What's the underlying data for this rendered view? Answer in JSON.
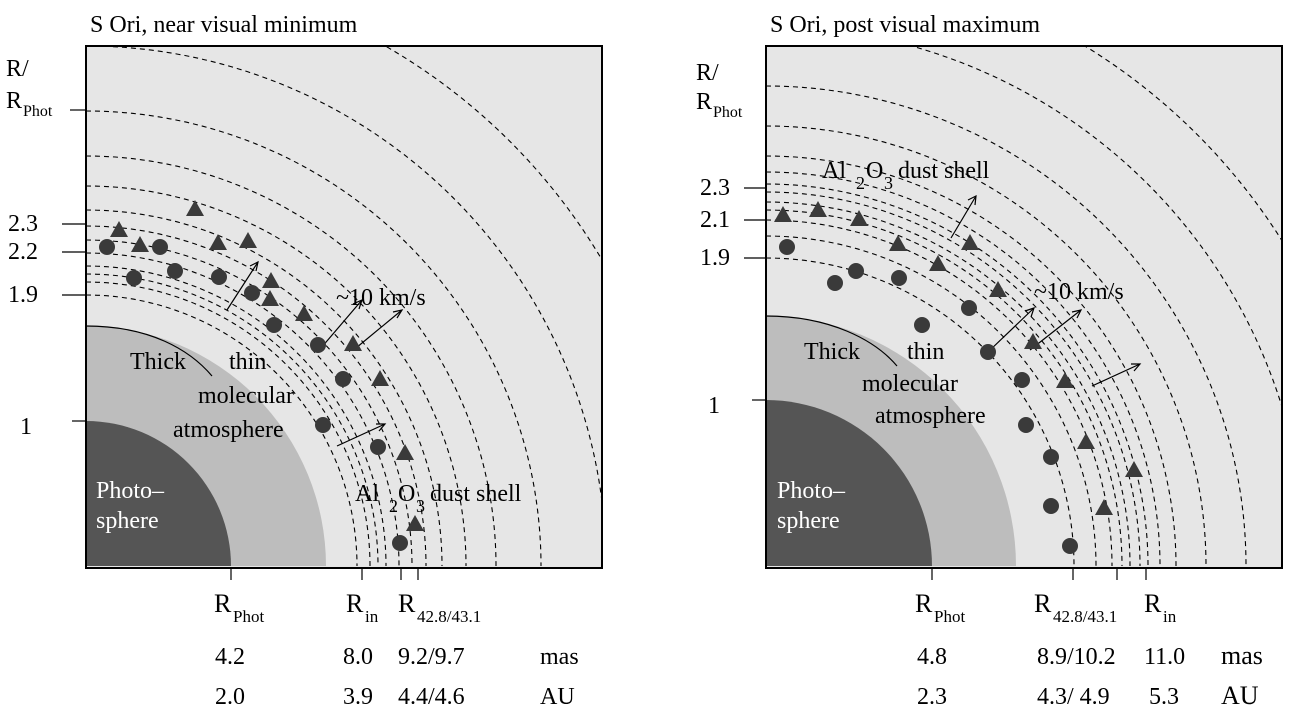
{
  "left": {
    "title": "S Ori, near visual minimum",
    "ylabel_main": "R/",
    "ylabel_sub_base": "R",
    "ylabel_sub_sub": "Phot",
    "yticks": [
      {
        "label": "2.3",
        "r": 2.3
      },
      {
        "label": "2.2",
        "r": 2.2
      },
      {
        "label": "1.9",
        "r": 1.9
      },
      {
        "label": "1",
        "r": 1.0
      }
    ],
    "region_labels": {
      "photo_line1": "Photo–",
      "photo_line2": "sphere",
      "thick": "Thick",
      "thin": "thin",
      "molecular": "molecular",
      "atmosphere": "atmosphere",
      "dust_main": "Al",
      "dust_sub2": "2",
      "dust_o": "O",
      "dust_sub3": "3",
      "dust_rest": "dust shell",
      "velocity": "~10 km/s"
    },
    "xaxis": [
      {
        "base": "R",
        "sub": "Phot"
      },
      {
        "base": "R",
        "sub": "in"
      },
      {
        "base": "R",
        "sub": "42.8/43.1"
      }
    ],
    "mas_values": [
      "4.2",
      "8.0",
      "9.2/9.7"
    ],
    "au_values": [
      "2.0",
      "3.9",
      "4.4/4.6"
    ],
    "unit_mas": "mas",
    "unit_au": "AU"
  },
  "right": {
    "title": "S Ori, post visual maximum",
    "ylabel_main": "R/",
    "ylabel_sub_base": "R",
    "ylabel_sub_sub": "Phot",
    "yticks": [
      {
        "label": "2.3",
        "r": 2.3
      },
      {
        "label": "2.1",
        "r": 2.1
      },
      {
        "label": "1.9",
        "r": 1.9
      },
      {
        "label": "1",
        "r": 1.0
      }
    ],
    "region_labels": {
      "photo_line1": "Photo–",
      "photo_line2": "sphere",
      "thick": "Thick",
      "thin": "thin",
      "molecular": "molecular",
      "atmosphere": "atmosphere",
      "dust_main": "Al",
      "dust_sub2": "2",
      "dust_o": "O",
      "dust_sub3": "3",
      "dust_rest": "dust shell",
      "velocity": "~10 km/s"
    },
    "xaxis": [
      {
        "base": "R",
        "sub": "Phot"
      },
      {
        "base": "R",
        "sub": "42.8/43.1"
      },
      {
        "base": "R",
        "sub": "in"
      }
    ],
    "mas_values": [
      "4.8",
      "8.9/10.2",
      "11.0"
    ],
    "au_values": [
      "2.3",
      "4.3/ 4.9",
      "5.3"
    ],
    "unit_mas": "mas",
    "unit_au": "AU"
  },
  "colors": {
    "panel_bg": "#e6e6e6",
    "photosphere": "#555555",
    "thick_atmosphere": "#bdbdbd",
    "markers": "#3a3a3a"
  }
}
